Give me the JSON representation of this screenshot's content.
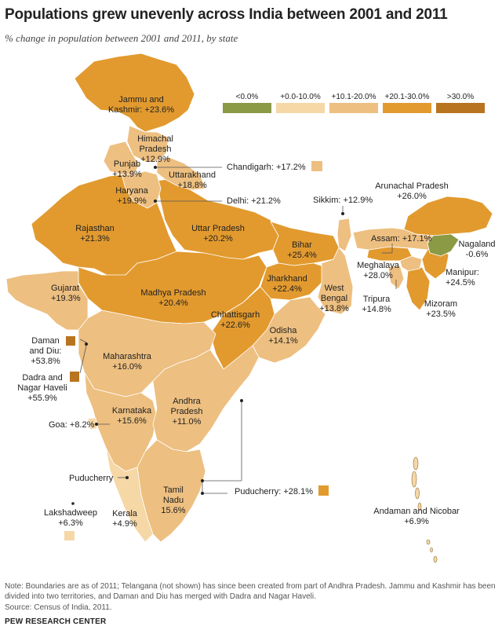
{
  "title": "Populations grew unevenly across India between 2001 and 2011",
  "subtitle": "% change in population between 2001 and 2011, by state",
  "legend": [
    {
      "label": "<0.0%",
      "color": "#8a9a45"
    },
    {
      "label": "+0.0-10.0%",
      "color": "#f6d7a6"
    },
    {
      "label": "+10.1-20.0%",
      "color": "#edbf80"
    },
    {
      "label": "+20.1-30.0%",
      "color": "#e29a2f"
    },
    {
      "label": ">30.0%",
      "color": "#b8741e"
    }
  ],
  "states": {
    "jammu": "Jammu and\nKashmir: +23.6%",
    "himachal": "Himachal\nPradesh\n+12.9%",
    "punjab": "Punjab\n+13.9%",
    "chandigarh": "Chandigarh: +17.2%",
    "uttarakhand": "Uttarakhand\n+18.8%",
    "haryana": "Haryana\n+19.9%",
    "delhi": "Delhi: +21.2%",
    "rajasthan": "Rajasthan\n+21.3%",
    "uttar": "Uttar Pradesh\n+20.2%",
    "sikkim": "Sikkim: +12.9%",
    "arunachal": "Arunachal Pradesh\n+26.0%",
    "assam": "Assam: +17.1%",
    "nagaland": "Nagaland\n-0.6%",
    "bihar": "Bihar\n+25.4%",
    "meghalaya": "Meghalaya\n+28.0%",
    "manipur": "Manipur:\n+24.5%",
    "gujarat": "Gujarat\n+19.3%",
    "madhya": "Madhya Pradesh\n+20.4%",
    "jharkhand": "Jharkhand\n+22.4%",
    "westbengal": "West\nBengal\n+13.8%",
    "tripura": "Tripura\n+14.8%",
    "mizoram": "Mizoram\n+23.5%",
    "chhattisgarh": "Chhattisgarh\n+22.6%",
    "odisha": "Odisha\n+14.1%",
    "daman": "Daman\nand Diu:\n+53.8%",
    "maharashtra": "Maharashtra\n+16.0%",
    "dadra": "Dadra and\nNagar Haveli\n+55.9%",
    "karnataka": "Karnataka\n+15.6%",
    "andhra": "Andhra\nPradesh\n+11.0%",
    "goa": "Goa: +8.2%",
    "puducherry_top": "Puducherry",
    "puducherry": "Puducherry: +28.1%",
    "tamilnadu": "Tamil\nNadu\n15.6%",
    "lakshadweep": "Lakshadweep\n+6.3%",
    "kerala": "Kerala\n+4.9%",
    "andaman": "Andaman and Nicobar\n+6.9%"
  },
  "note": "Note: Boundaries are as of 2011; Telangana (not shown) has since been created from part of Andhra Pradesh. Jammu and Kashmir has been divided into two territories, and Daman and Diu has merged with Dadra and Nagar Haveli.",
  "source": "Source: Census of India, 2011.",
  "brand": "PEW RESEARCH CENTER"
}
